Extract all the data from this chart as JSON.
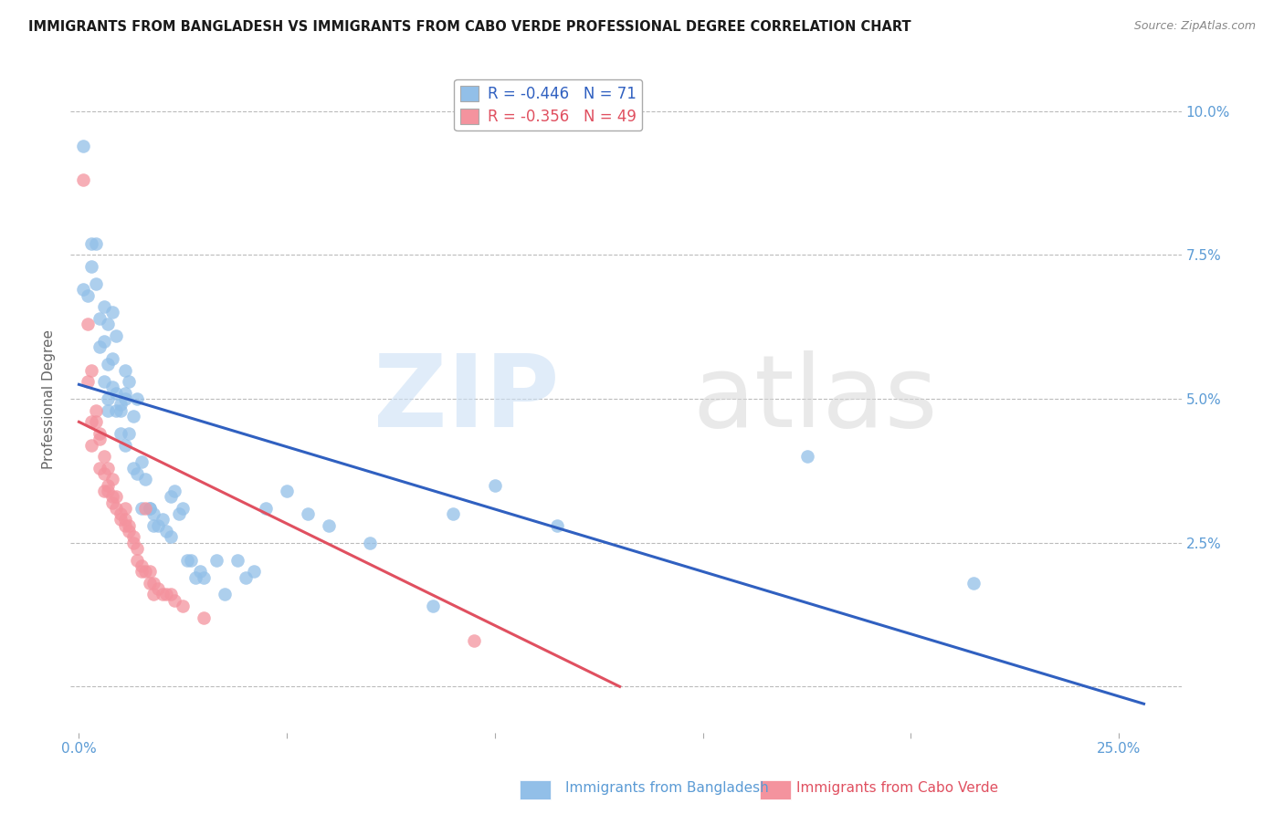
{
  "title": "IMMIGRANTS FROM BANGLADESH VS IMMIGRANTS FROM CABO VERDE PROFESSIONAL DEGREE CORRELATION CHART",
  "source": "Source: ZipAtlas.com",
  "ylabel_label": "Professional Degree",
  "y_ticks": [
    0.0,
    0.025,
    0.05,
    0.075,
    0.1
  ],
  "y_tick_labels": [
    "",
    "2.5%",
    "5.0%",
    "7.5%",
    "10.0%"
  ],
  "x_ticks": [
    0.0,
    0.05,
    0.1,
    0.15,
    0.2,
    0.25
  ],
  "x_tick_labels": [
    "0.0%",
    "",
    "",
    "",
    "",
    "25.0%"
  ],
  "xlim": [
    -0.002,
    0.265
  ],
  "ylim": [
    -0.008,
    0.108
  ],
  "bg_color": "#ffffff",
  "grid_color": "#bbbbbb",
  "blue_color": "#92bfe8",
  "pink_color": "#f4939e",
  "blue_line_color": "#3060c0",
  "pink_line_color": "#e05060",
  "axis_label_color": "#5b9bd5",
  "legend_blue_label": "R = -0.446   N = 71",
  "legend_pink_label": "R = -0.356   N = 49",
  "bottom_legend_blue": "Immigrants from Bangladesh",
  "bottom_legend_pink": "Immigrants from Cabo Verde",
  "bangladesh_line_x": [
    0.0,
    0.256
  ],
  "bangladesh_line_y": [
    0.0525,
    -0.003
  ],
  "caboverde_line_x": [
    0.0,
    0.13
  ],
  "caboverde_line_y": [
    0.046,
    0.0
  ],
  "bangladesh_points": [
    [
      0.001,
      0.094
    ],
    [
      0.001,
      0.069
    ],
    [
      0.002,
      0.068
    ],
    [
      0.003,
      0.077
    ],
    [
      0.003,
      0.073
    ],
    [
      0.004,
      0.077
    ],
    [
      0.004,
      0.07
    ],
    [
      0.005,
      0.064
    ],
    [
      0.005,
      0.059
    ],
    [
      0.006,
      0.066
    ],
    [
      0.006,
      0.06
    ],
    [
      0.006,
      0.053
    ],
    [
      0.007,
      0.063
    ],
    [
      0.007,
      0.056
    ],
    [
      0.007,
      0.05
    ],
    [
      0.007,
      0.048
    ],
    [
      0.008,
      0.065
    ],
    [
      0.008,
      0.057
    ],
    [
      0.008,
      0.052
    ],
    [
      0.009,
      0.061
    ],
    [
      0.009,
      0.051
    ],
    [
      0.009,
      0.048
    ],
    [
      0.01,
      0.048
    ],
    [
      0.01,
      0.049
    ],
    [
      0.01,
      0.044
    ],
    [
      0.011,
      0.055
    ],
    [
      0.011,
      0.051
    ],
    [
      0.011,
      0.05
    ],
    [
      0.011,
      0.042
    ],
    [
      0.012,
      0.044
    ],
    [
      0.012,
      0.053
    ],
    [
      0.013,
      0.047
    ],
    [
      0.013,
      0.038
    ],
    [
      0.014,
      0.037
    ],
    [
      0.014,
      0.05
    ],
    [
      0.015,
      0.039
    ],
    [
      0.015,
      0.031
    ],
    [
      0.016,
      0.036
    ],
    [
      0.017,
      0.031
    ],
    [
      0.017,
      0.031
    ],
    [
      0.018,
      0.028
    ],
    [
      0.018,
      0.03
    ],
    [
      0.019,
      0.028
    ],
    [
      0.02,
      0.029
    ],
    [
      0.021,
      0.027
    ],
    [
      0.022,
      0.033
    ],
    [
      0.022,
      0.026
    ],
    [
      0.023,
      0.034
    ],
    [
      0.024,
      0.03
    ],
    [
      0.025,
      0.031
    ],
    [
      0.026,
      0.022
    ],
    [
      0.027,
      0.022
    ],
    [
      0.028,
      0.019
    ],
    [
      0.029,
      0.02
    ],
    [
      0.03,
      0.019
    ],
    [
      0.033,
      0.022
    ],
    [
      0.035,
      0.016
    ],
    [
      0.038,
      0.022
    ],
    [
      0.04,
      0.019
    ],
    [
      0.042,
      0.02
    ],
    [
      0.045,
      0.031
    ],
    [
      0.05,
      0.034
    ],
    [
      0.055,
      0.03
    ],
    [
      0.06,
      0.028
    ],
    [
      0.07,
      0.025
    ],
    [
      0.085,
      0.014
    ],
    [
      0.09,
      0.03
    ],
    [
      0.1,
      0.035
    ],
    [
      0.115,
      0.028
    ],
    [
      0.175,
      0.04
    ],
    [
      0.215,
      0.018
    ]
  ],
  "caboverde_points": [
    [
      0.001,
      0.088
    ],
    [
      0.002,
      0.063
    ],
    [
      0.002,
      0.053
    ],
    [
      0.003,
      0.055
    ],
    [
      0.003,
      0.046
    ],
    [
      0.003,
      0.042
    ],
    [
      0.004,
      0.048
    ],
    [
      0.004,
      0.046
    ],
    [
      0.005,
      0.044
    ],
    [
      0.005,
      0.043
    ],
    [
      0.005,
      0.038
    ],
    [
      0.006,
      0.04
    ],
    [
      0.006,
      0.037
    ],
    [
      0.006,
      0.034
    ],
    [
      0.007,
      0.038
    ],
    [
      0.007,
      0.035
    ],
    [
      0.007,
      0.034
    ],
    [
      0.008,
      0.036
    ],
    [
      0.008,
      0.033
    ],
    [
      0.008,
      0.032
    ],
    [
      0.009,
      0.033
    ],
    [
      0.009,
      0.031
    ],
    [
      0.01,
      0.03
    ],
    [
      0.01,
      0.029
    ],
    [
      0.011,
      0.031
    ],
    [
      0.011,
      0.029
    ],
    [
      0.011,
      0.028
    ],
    [
      0.012,
      0.028
    ],
    [
      0.012,
      0.027
    ],
    [
      0.013,
      0.026
    ],
    [
      0.013,
      0.025
    ],
    [
      0.014,
      0.024
    ],
    [
      0.014,
      0.022
    ],
    [
      0.015,
      0.021
    ],
    [
      0.015,
      0.02
    ],
    [
      0.016,
      0.031
    ],
    [
      0.016,
      0.02
    ],
    [
      0.017,
      0.02
    ],
    [
      0.017,
      0.018
    ],
    [
      0.018,
      0.018
    ],
    [
      0.018,
      0.016
    ],
    [
      0.019,
      0.017
    ],
    [
      0.02,
      0.016
    ],
    [
      0.021,
      0.016
    ],
    [
      0.022,
      0.016
    ],
    [
      0.023,
      0.015
    ],
    [
      0.025,
      0.014
    ],
    [
      0.03,
      0.012
    ],
    [
      0.095,
      0.008
    ]
  ]
}
